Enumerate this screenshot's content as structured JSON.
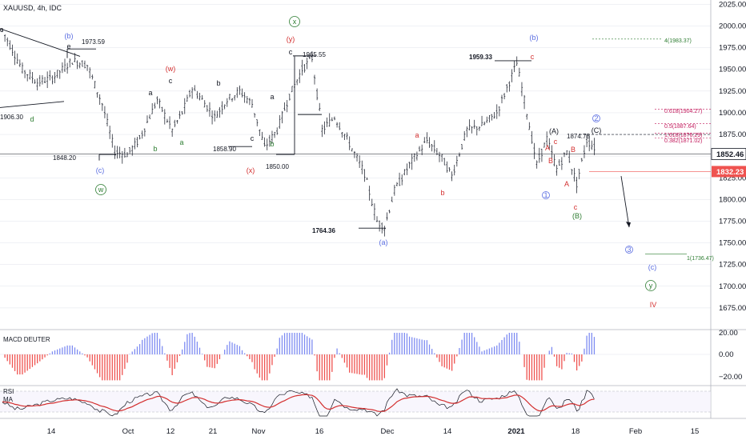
{
  "header": {
    "ticker": "XAUUSD, 4h, IDC"
  },
  "colors": {
    "candle": "#2a2e39",
    "grid": "#e0e3eb",
    "macd_pos": "#7e8cf2",
    "macd_neg": "#ef5350",
    "rsi": "#131722",
    "rsi_ma": "#d32f2f",
    "blue_wave": "#5b6ee1",
    "red_wave": "#d32f2f",
    "green_wave": "#2e7d32",
    "black_wave": "#131722",
    "fib": "#c2185b",
    "projection": "#2e7d32",
    "price_line": "#ef5350"
  },
  "chart_data": {
    "type": "candlestick",
    "x_labels": [
      "14",
      "Oct",
      "12",
      "21",
      "Nov",
      "16",
      "Dec",
      "14",
      "2021",
      "18",
      "Feb",
      "15"
    ],
    "y_range": [
      1650,
      2030
    ],
    "y_ticks": [
      1675,
      1700,
      1725,
      1750,
      1775,
      1800,
      1825,
      1850,
      1875,
      1900,
      1925,
      1950,
      1975,
      2000,
      2025
    ],
    "y_tick_labels": [
      "1675.00",
      "1700.00",
      "1725.00",
      "1750.00",
      "1775.00",
      "1800.00",
      "1825.00",
      "1850.00",
      "1875.00",
      "1900.00",
      "1925.00",
      "1950.00",
      "1975.00",
      "2000.00",
      "2025.00"
    ],
    "path_keypoints": [
      [
        0,
        1995
      ],
      [
        8,
        1950
      ],
      [
        14,
        1935
      ],
      [
        20,
        1940
      ],
      [
        28,
        1960
      ],
      [
        34,
        1955
      ],
      [
        40,
        1910
      ],
      [
        45,
        1855
      ],
      [
        50,
        1852
      ],
      [
        55,
        1870
      ],
      [
        62,
        1915
      ],
      [
        68,
        1880
      ],
      [
        72,
        1900
      ],
      [
        76,
        1928
      ],
      [
        80,
        1915
      ],
      [
        85,
        1895
      ],
      [
        90,
        1915
      ],
      [
        95,
        1925
      ],
      [
        100,
        1910
      ],
      [
        105,
        1860
      ],
      [
        110,
        1880
      ],
      [
        115,
        1920
      ],
      [
        120,
        1950
      ],
      [
        124,
        1963
      ],
      [
        128,
        1880
      ],
      [
        133,
        1895
      ],
      [
        138,
        1870
      ],
      [
        145,
        1830
      ],
      [
        150,
        1775
      ],
      [
        153,
        1768
      ],
      [
        157,
        1810
      ],
      [
        163,
        1840
      ],
      [
        170,
        1868
      ],
      [
        176,
        1848
      ],
      [
        180,
        1827
      ],
      [
        186,
        1880
      ],
      [
        192,
        1885
      ],
      [
        198,
        1900
      ],
      [
        206,
        1957
      ],
      [
        210,
        1900
      ],
      [
        214,
        1840
      ],
      [
        218,
        1870
      ],
      [
        222,
        1835
      ],
      [
        226,
        1855
      ],
      [
        230,
        1818
      ],
      [
        234,
        1868
      ],
      [
        237,
        1860
      ]
    ],
    "price_labels": [
      {
        "text": "1973.59",
        "value": 1973.59
      },
      {
        "text": "1965.55",
        "value": 1965.55
      },
      {
        "text": "1959.33",
        "value": 1959.33
      },
      {
        "text": "1906.30",
        "value": 1906.3
      },
      {
        "text": "1858.90",
        "value": 1858.9
      },
      {
        "text": "1874.78",
        "value": 1874.78
      },
      {
        "text": "1848.20",
        "value": 1848.2
      },
      {
        "text": "1850.00",
        "value": 1850.0
      },
      {
        "text": "1764.36",
        "value": 1764.36
      }
    ],
    "wave_labels": [
      {
        "text": "c",
        "color": "black_wave"
      },
      {
        "text": "(b)",
        "color": "blue_wave"
      },
      {
        "text": "e",
        "color": "black_wave"
      },
      {
        "text": "d",
        "color": "green_wave"
      },
      {
        "text": "(c)",
        "color": "blue_wave"
      },
      {
        "text": "w",
        "color": "green_wave",
        "circled": true
      },
      {
        "text": "(w)",
        "color": "red_wave"
      },
      {
        "text": "a",
        "color": "black_wave"
      },
      {
        "text": "c",
        "color": "black_wave"
      },
      {
        "text": "b",
        "color": "green_wave"
      },
      {
        "text": "a",
        "color": "green_wave"
      },
      {
        "text": "b",
        "color": "black_wave"
      },
      {
        "text": "c",
        "color": "black_wave"
      },
      {
        "text": "(x)",
        "color": "red_wave"
      },
      {
        "text": "x",
        "color": "green_wave",
        "circled": true
      },
      {
        "text": "(y)",
        "color": "red_wave"
      },
      {
        "text": "c",
        "color": "black_wave"
      },
      {
        "text": "a",
        "color": "black_wave"
      },
      {
        "text": "b",
        "color": "green_wave"
      },
      {
        "text": "(a)",
        "color": "blue_wave"
      },
      {
        "text": "a",
        "color": "red_wave"
      },
      {
        "text": "b",
        "color": "red_wave"
      },
      {
        "text": "(b)",
        "color": "blue_wave"
      },
      {
        "text": "c",
        "color": "red_wave"
      },
      {
        "text": "1",
        "color": "blue_wave",
        "circled": true
      },
      {
        "text": "(A)",
        "color": "black_wave"
      },
      {
        "text": "A",
        "color": "red_wave"
      },
      {
        "text": "B",
        "color": "red_wave"
      },
      {
        "text": "c",
        "color": "red_wave"
      },
      {
        "text": "B",
        "color": "red_wave"
      },
      {
        "text": "A",
        "color": "red_wave"
      },
      {
        "text": "c",
        "color": "red_wave"
      },
      {
        "text": "(B)",
        "color": "green_wave"
      },
      {
        "text": "(C)",
        "color": "black_wave"
      },
      {
        "text": "2",
        "color": "blue_wave",
        "circled": true
      },
      {
        "text": "3",
        "color": "blue_wave",
        "circled": true
      },
      {
        "text": "(c)",
        "color": "blue_wave"
      },
      {
        "text": "y",
        "color": "green_wave",
        "circled": true
      },
      {
        "text": "IV",
        "color": "red_wave"
      }
    ],
    "fib_labels": [
      {
        "text": "0.618(1904.27)",
        "value": 1904.27
      },
      {
        "text": "0.5(1887.64)",
        "value": 1887.64
      },
      {
        "text": "1.618(1876.29)",
        "value": 1876.29
      },
      {
        "text": "0.382(1871.02)",
        "value": 1871.02
      }
    ],
    "projection_labels": [
      {
        "text": "4(1983.37)",
        "value": 1983.37
      },
      {
        "text": "1(1736.47)",
        "value": 1736.47
      }
    ],
    "current_price": {
      "text": "1852.46",
      "value": 1852.46
    },
    "red_price": {
      "text": "1832.23",
      "value": 1832.23
    },
    "macd": {
      "title": "MACD DEUTER",
      "y_ticks": [
        20,
        0,
        -20
      ],
      "y_tick_labels": [
        "20.00",
        "0.00",
        "−20.00"
      ]
    },
    "rsi": {
      "title": "RSI",
      "ma_label": "MA"
    }
  }
}
